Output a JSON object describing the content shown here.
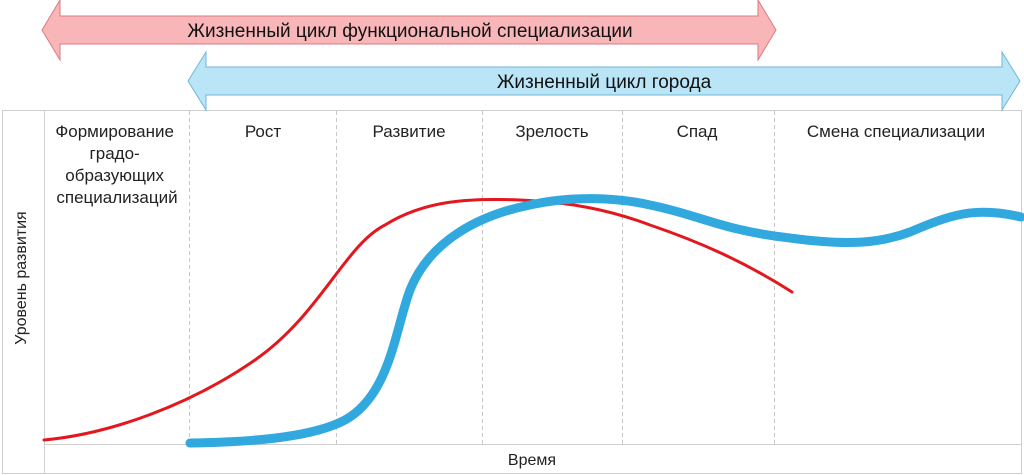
{
  "arrows": {
    "functional": {
      "label": "Жизненный цикл функциональной специализации",
      "fill": "#f9b6b9",
      "stroke": "#d97b80"
    },
    "city": {
      "label": "Жизненный цикл города",
      "fill": "#b9e5f7",
      "stroke": "#6fb7d6"
    }
  },
  "phases": {
    "formation": [
      "Формирование",
      "градо-",
      "образующих",
      "специализаций"
    ],
    "growth": "Рост",
    "development": "Развитие",
    "maturity": "Зрелость",
    "decline": "Спад",
    "change": "Смена специализации"
  },
  "axes": {
    "y_label": "Уровень развития",
    "x_label": "Время"
  },
  "curves": {
    "functional_color": "#e3171e",
    "city_color": "#31a9de"
  }
}
